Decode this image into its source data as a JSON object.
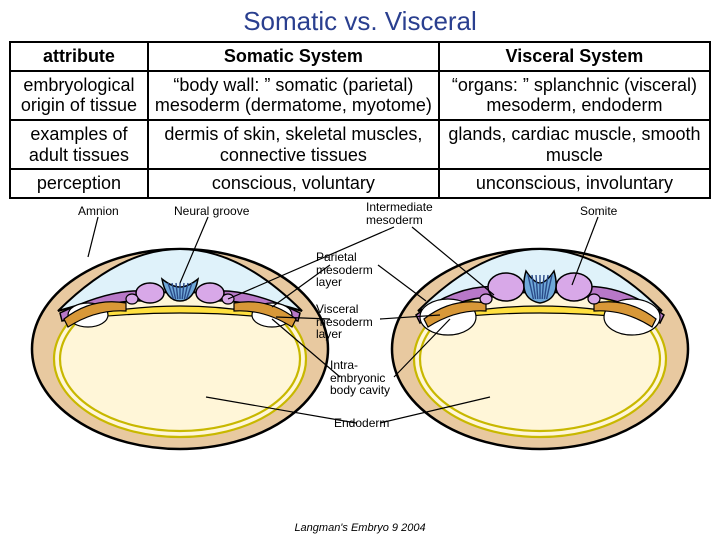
{
  "title": "Somatic vs. Visceral",
  "title_color": "#2a3f8f",
  "table": {
    "columns": [
      "attribute",
      "Somatic System",
      "Visceral System"
    ],
    "rows": [
      [
        "embryological origin of tissue",
        "“body wall: ” somatic (parietal) mesoderm (dermatome, myotome)",
        "“organs: ” splanchnic (visceral) mesoderm, endoderm"
      ],
      [
        "examples of adult tissues",
        "dermis of skin, skeletal muscles, connective tissues",
        "glands, cardiac muscle, smooth muscle"
      ],
      [
        "perception",
        "conscious, voluntary",
        "unconscious, involuntary"
      ]
    ],
    "border_color": "#000000",
    "font_size": 18
  },
  "diagram": {
    "labels": {
      "amnion": "Amnion",
      "neural_groove": "Neural groove",
      "intermediate_mesoderm": "Intermediate\nmesoderm",
      "somite": "Somite",
      "parietal_mesoderm": "Parietal\nmesoderm\nlayer",
      "visceral_mesoderm": "Visceral\nmesoderm\nlayer",
      "intra_cavity": "Intra-\nembryonic\nbody cavity",
      "endoderm": "Endoderm"
    },
    "colors": {
      "outline": "#000000",
      "body_fill": "#e8c9a0",
      "yolk_fill": "#fff6d8",
      "yolk_line": "#c8b800",
      "parietal_fill": "#b878c8",
      "visceral_fill": "#d89838",
      "neural_fill": "#6fa8d8",
      "neural_stripe": "#2a4a88",
      "somite_fill": "#d8a8e8",
      "endoderm_fill": "#ffe040",
      "amnion_fill": "#dff2fa",
      "cavity_fill": "#ffffff"
    }
  },
  "citation": "Langman's Embryo 9 2004"
}
